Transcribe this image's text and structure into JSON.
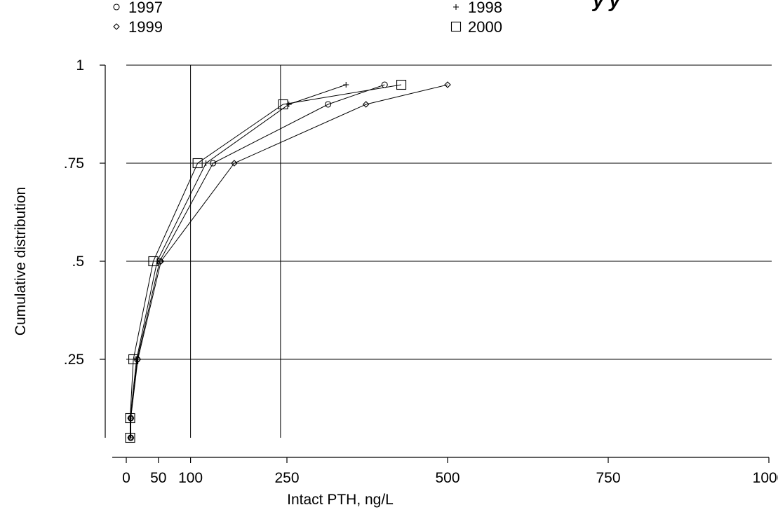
{
  "chart_data": {
    "type": "line",
    "title_fragment": "y y",
    "xlabel": "Intact PTH, ng/L",
    "ylabel": "Cumulative distribution",
    "xlim": [
      0,
      1000
    ],
    "ylim": [
      0.05,
      1
    ],
    "x_ticks": [
      {
        "value": 0,
        "label": "0"
      },
      {
        "value": 50,
        "label": "50"
      },
      {
        "value": 100,
        "label": "100"
      },
      {
        "value": 250,
        "label": "250"
      },
      {
        "value": 500,
        "label": "500"
      },
      {
        "value": 750,
        "label": "750"
      },
      {
        "value": 1000,
        "label": "1000"
      }
    ],
    "y_ticks": [
      {
        "value": 0.25,
        "label": ".25"
      },
      {
        "value": 0.5,
        "label": ".5"
      },
      {
        "value": 0.75,
        "label": ".75"
      },
      {
        "value": 1,
        "label": "1"
      }
    ],
    "horizontal_reference_lines": [
      0.25,
      0.5,
      0.75,
      1
    ],
    "vertical_reference_lines": [
      100,
      240
    ],
    "legend_placement": "top",
    "series": [
      {
        "name": "1997",
        "marker": "circle",
        "points": [
          [
            7,
            0.05
          ],
          [
            7,
            0.1
          ],
          [
            17,
            0.25
          ],
          [
            52,
            0.5
          ],
          [
            135,
            0.75
          ],
          [
            314,
            0.9
          ],
          [
            402,
            0.95
          ]
        ]
      },
      {
        "name": "1998",
        "marker": "plus",
        "points": [
          [
            6,
            0.05
          ],
          [
            6,
            0.1
          ],
          [
            16,
            0.25
          ],
          [
            48,
            0.5
          ],
          [
            124,
            0.75
          ],
          [
            253,
            0.9
          ],
          [
            342,
            0.95
          ]
        ]
      },
      {
        "name": "1999",
        "marker": "diamond",
        "points": [
          [
            7,
            0.05
          ],
          [
            7,
            0.1
          ],
          [
            18,
            0.25
          ],
          [
            54,
            0.5
          ],
          [
            168,
            0.75
          ],
          [
            373,
            0.9
          ],
          [
            500,
            0.95
          ]
        ]
      },
      {
        "name": "2000",
        "marker": "square",
        "points": [
          [
            6,
            0.05
          ],
          [
            6,
            0.1
          ],
          [
            11,
            0.25
          ],
          [
            42,
            0.5
          ],
          [
            111,
            0.75
          ],
          [
            244,
            0.9
          ],
          [
            428,
            0.95
          ]
        ]
      }
    ]
  }
}
